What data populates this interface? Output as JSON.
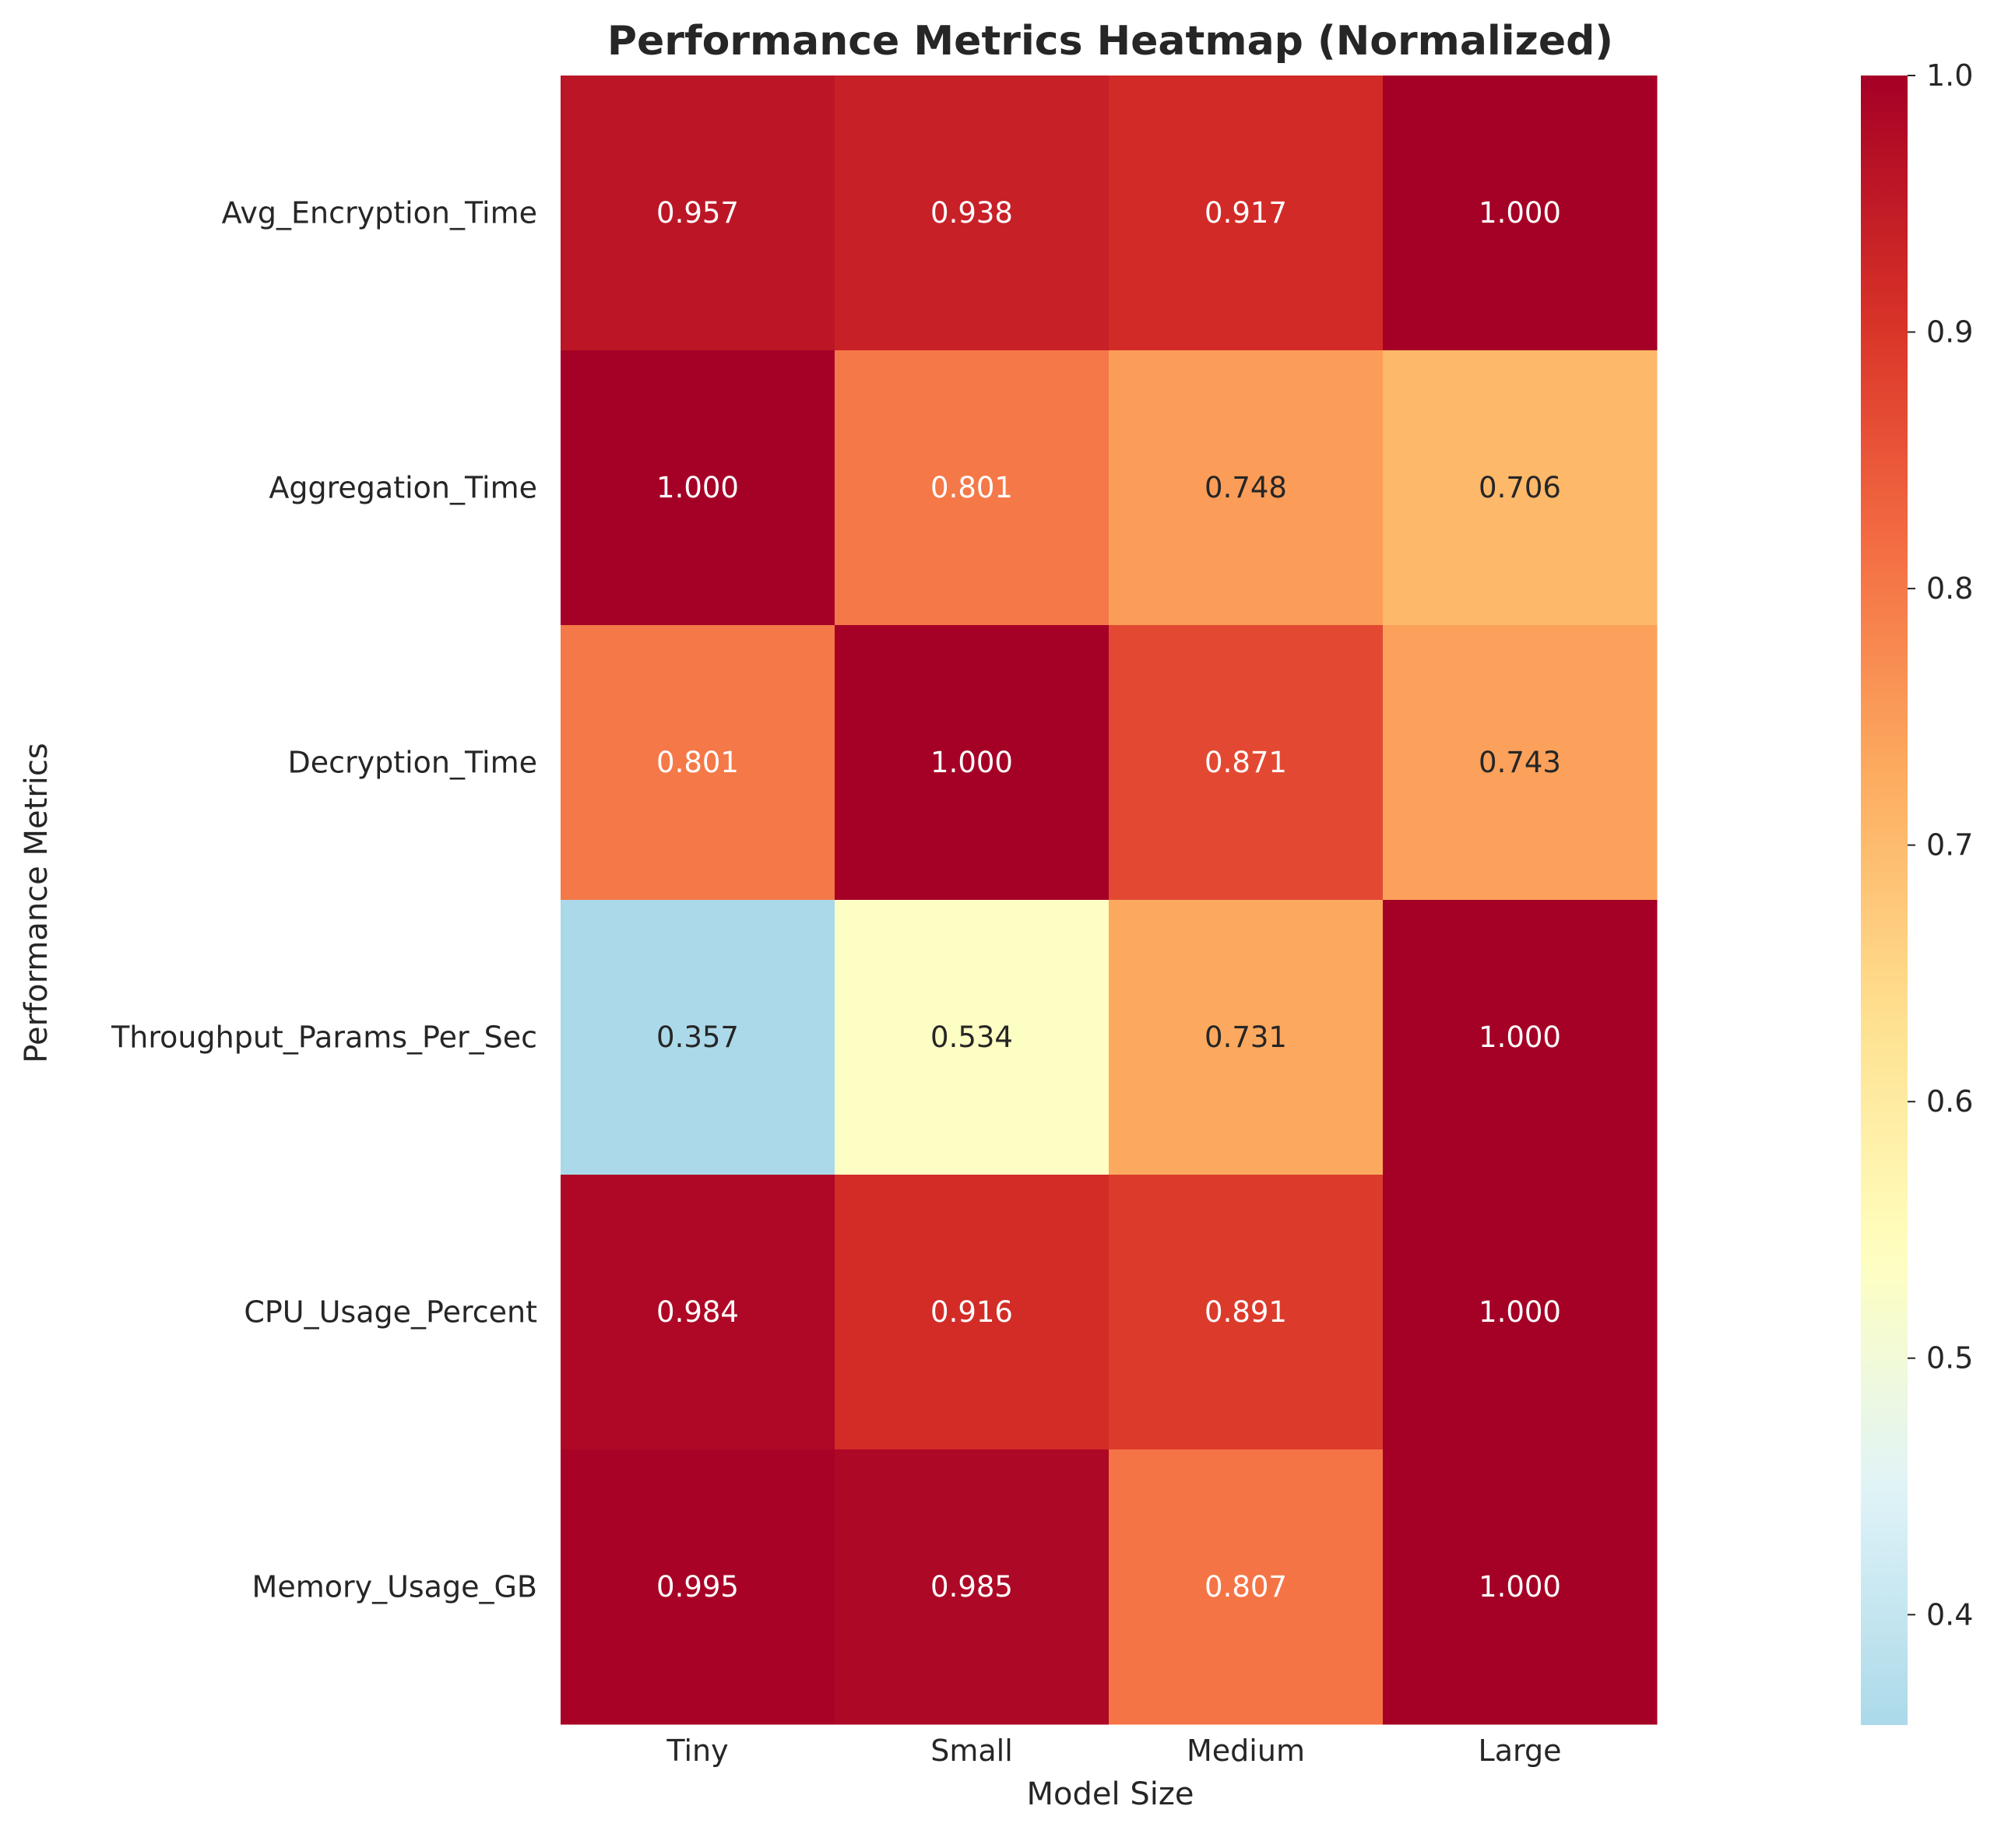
{
  "chart_data": {
    "type": "heatmap",
    "title": "Performance Metrics Heatmap (Normalized)",
    "xlabel": "Model Size",
    "ylabel": "Performance Metrics",
    "x_categories": [
      "Tiny",
      "Small",
      "Medium",
      "Large"
    ],
    "y_categories": [
      "Avg_Encryption_Time",
      "Aggregation_Time",
      "Decryption_Time",
      "Throughput_Params_Per_Sec",
      "CPU_Usage_Percent",
      "Memory_Usage_GB"
    ],
    "values": [
      [
        0.957,
        0.938,
        0.917,
        1.0
      ],
      [
        1.0,
        0.801,
        0.748,
        0.706
      ],
      [
        0.801,
        1.0,
        0.871,
        0.743
      ],
      [
        0.357,
        0.534,
        0.731,
        1.0
      ],
      [
        0.984,
        0.916,
        0.891,
        1.0
      ],
      [
        0.995,
        0.985,
        0.807,
        1.0
      ]
    ],
    "value_format": "0.000",
    "colorscale": {
      "name": "RdYlBu_r",
      "vmin": 0.357,
      "vmax": 1.0,
      "ticks": [
        "0.4",
        "0.5",
        "0.6",
        "0.7",
        "0.8",
        "0.9",
        "1.0"
      ]
    },
    "grid": false
  }
}
